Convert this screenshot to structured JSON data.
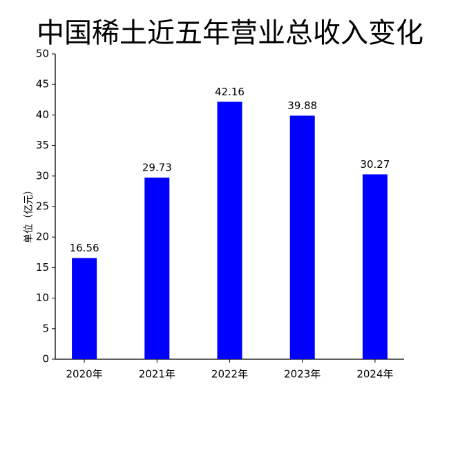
{
  "chart_data": {
    "type": "bar",
    "title": "中国稀土近五年营业总收入变化",
    "y_label": "单位（亿元）",
    "categories": [
      "2020年",
      "2021年",
      "2022年",
      "2023年",
      "2024年"
    ],
    "values": [
      16.56,
      29.73,
      42.16,
      39.88,
      30.27
    ],
    "color": "#0000ff",
    "ylim": [
      0,
      50
    ],
    "yticks": [
      0,
      5,
      10,
      15,
      20,
      25,
      30,
      35,
      40,
      45,
      50
    ],
    "grid": false
  }
}
